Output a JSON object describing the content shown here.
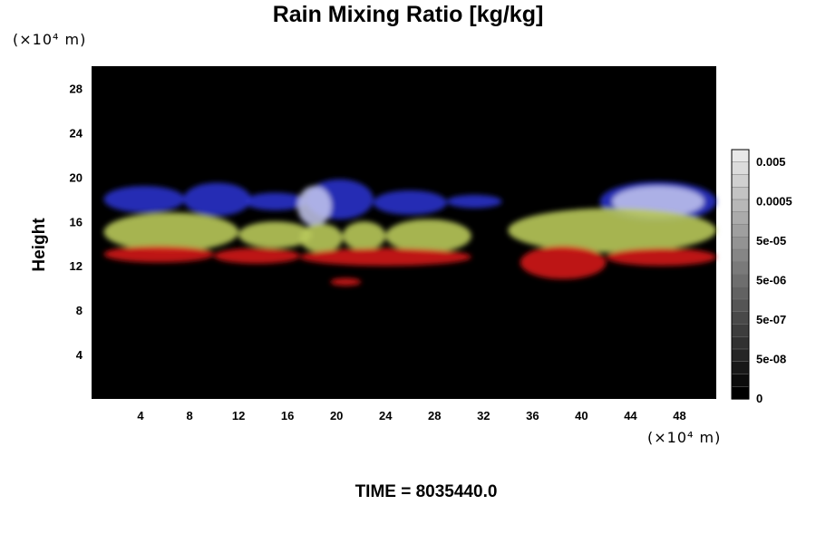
{
  "chart_data": {
    "type": "heatmap",
    "title": "Rain Mixing Ratio [kg/kg]",
    "ylabel": "Height",
    "y_unit": "(×10⁴ m)",
    "x_unit": "(×10⁴ m)",
    "xlim": [
      0,
      51
    ],
    "ylim": [
      0,
      30
    ],
    "x_ticks": [
      "4",
      "8",
      "12",
      "16",
      "20",
      "24",
      "28",
      "32",
      "36",
      "40",
      "44",
      "48"
    ],
    "y_ticks": [
      "4",
      "8",
      "12",
      "16",
      "20",
      "24",
      "28"
    ],
    "colorbar": {
      "labels": [
        "0.005",
        "0.0005",
        "5e-05",
        "5e-06",
        "5e-07",
        "5e-08",
        "0"
      ],
      "levels": 20,
      "colors": {
        "top": "#e8e8e8",
        "bottom": "#000000"
      }
    },
    "background": "#000000",
    "layers": [
      {
        "color": "#2a32c8",
        "y_range": [
          16.5,
          19.5
        ]
      },
      {
        "color": "#b8c85a",
        "y_range": [
          13.5,
          16.5
        ]
      },
      {
        "color": "#d21414",
        "y_range": [
          11.5,
          13.5
        ]
      }
    ],
    "footer": "TIME = 8035440.0"
  }
}
